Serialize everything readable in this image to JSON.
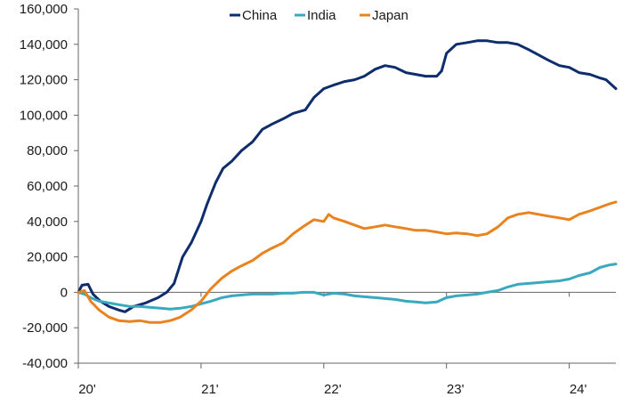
{
  "chart_data": {
    "type": "line",
    "title": "",
    "xlabel": "",
    "ylabel": "",
    "ylim": [
      -40000,
      160000
    ],
    "yticks": [
      -40000,
      -20000,
      0,
      20000,
      40000,
      60000,
      80000,
      100000,
      120000,
      140000,
      160000
    ],
    "ytick_labels": [
      "-40,000",
      "-20,000",
      "0",
      "20,000",
      "40,000",
      "60,000",
      "80,000",
      "100,000",
      "120,000",
      "140,000",
      "160,000"
    ],
    "xlim": [
      2020.0,
      2024.38
    ],
    "xticks": [
      2020,
      2021,
      2022,
      2023,
      2024
    ],
    "xtick_labels": [
      "20'",
      "21'",
      "22'",
      "23'",
      "24'"
    ],
    "grid": false,
    "legend_position": "top-center",
    "series": [
      {
        "name": "China",
        "color": "#0d2d6c",
        "points": [
          [
            2020.0,
            0
          ],
          [
            2020.03,
            4000
          ],
          [
            2020.08,
            4500
          ],
          [
            2020.12,
            -1000
          ],
          [
            2020.18,
            -5000
          ],
          [
            2020.25,
            -8000
          ],
          [
            2020.33,
            -10000
          ],
          [
            2020.38,
            -11000
          ],
          [
            2020.45,
            -8000
          ],
          [
            2020.55,
            -6000
          ],
          [
            2020.65,
            -3000
          ],
          [
            2020.72,
            0
          ],
          [
            2020.78,
            5000
          ],
          [
            2020.85,
            20000
          ],
          [
            2020.92,
            28000
          ],
          [
            2021.0,
            40000
          ],
          [
            2021.05,
            50000
          ],
          [
            2021.12,
            62000
          ],
          [
            2021.18,
            70000
          ],
          [
            2021.25,
            74000
          ],
          [
            2021.33,
            80000
          ],
          [
            2021.42,
            85000
          ],
          [
            2021.5,
            92000
          ],
          [
            2021.58,
            95000
          ],
          [
            2021.67,
            98000
          ],
          [
            2021.75,
            101000
          ],
          [
            2021.85,
            103000
          ],
          [
            2021.92,
            110000
          ],
          [
            2022.0,
            115000
          ],
          [
            2022.08,
            117000
          ],
          [
            2022.17,
            119000
          ],
          [
            2022.25,
            120000
          ],
          [
            2022.33,
            122000
          ],
          [
            2022.42,
            126000
          ],
          [
            2022.5,
            128000
          ],
          [
            2022.58,
            127000
          ],
          [
            2022.67,
            124000
          ],
          [
            2022.75,
            123000
          ],
          [
            2022.83,
            122000
          ],
          [
            2022.92,
            122000
          ],
          [
            2022.96,
            125000
          ],
          [
            2023.0,
            135000
          ],
          [
            2023.08,
            140000
          ],
          [
            2023.17,
            141000
          ],
          [
            2023.25,
            142000
          ],
          [
            2023.33,
            142000
          ],
          [
            2023.42,
            141000
          ],
          [
            2023.5,
            141000
          ],
          [
            2023.58,
            140000
          ],
          [
            2023.67,
            137000
          ],
          [
            2023.75,
            134000
          ],
          [
            2023.83,
            131000
          ],
          [
            2023.92,
            128000
          ],
          [
            2024.0,
            127000
          ],
          [
            2024.08,
            124000
          ],
          [
            2024.17,
            123000
          ],
          [
            2024.25,
            121000
          ],
          [
            2024.3,
            120000
          ],
          [
            2024.38,
            115000
          ]
        ]
      },
      {
        "name": "India",
        "color": "#3aa8bf",
        "points": [
          [
            2020.0,
            0
          ],
          [
            2020.05,
            -1000
          ],
          [
            2020.1,
            -3000
          ],
          [
            2020.17,
            -5000
          ],
          [
            2020.25,
            -6000
          ],
          [
            2020.33,
            -7000
          ],
          [
            2020.42,
            -8000
          ],
          [
            2020.5,
            -8000
          ],
          [
            2020.58,
            -8500
          ],
          [
            2020.67,
            -9000
          ],
          [
            2020.75,
            -9500
          ],
          [
            2020.83,
            -9000
          ],
          [
            2020.92,
            -8000
          ],
          [
            2021.0,
            -6500
          ],
          [
            2021.08,
            -5000
          ],
          [
            2021.17,
            -3000
          ],
          [
            2021.25,
            -2000
          ],
          [
            2021.33,
            -1500
          ],
          [
            2021.42,
            -1000
          ],
          [
            2021.5,
            -1000
          ],
          [
            2021.58,
            -1000
          ],
          [
            2021.67,
            -500
          ],
          [
            2021.75,
            -500
          ],
          [
            2021.83,
            0
          ],
          [
            2021.92,
            0
          ],
          [
            2022.0,
            -1500
          ],
          [
            2022.08,
            -500
          ],
          [
            2022.17,
            -1000
          ],
          [
            2022.25,
            -2000
          ],
          [
            2022.33,
            -2500
          ],
          [
            2022.42,
            -3000
          ],
          [
            2022.5,
            -3500
          ],
          [
            2022.58,
            -4000
          ],
          [
            2022.67,
            -5000
          ],
          [
            2022.75,
            -5500
          ],
          [
            2022.83,
            -6000
          ],
          [
            2022.92,
            -5500
          ],
          [
            2023.0,
            -3000
          ],
          [
            2023.08,
            -2000
          ],
          [
            2023.17,
            -1500
          ],
          [
            2023.25,
            -1000
          ],
          [
            2023.33,
            0
          ],
          [
            2023.42,
            1000
          ],
          [
            2023.5,
            3000
          ],
          [
            2023.58,
            4500
          ],
          [
            2023.67,
            5000
          ],
          [
            2023.75,
            5500
          ],
          [
            2023.83,
            6000
          ],
          [
            2023.92,
            6500
          ],
          [
            2024.0,
            7500
          ],
          [
            2024.08,
            9500
          ],
          [
            2024.17,
            11000
          ],
          [
            2024.25,
            14000
          ],
          [
            2024.33,
            15500
          ],
          [
            2024.38,
            16000
          ]
        ]
      },
      {
        "name": "Japan",
        "color": "#e8831f",
        "points": [
          [
            2020.0,
            0
          ],
          [
            2020.05,
            1000
          ],
          [
            2020.1,
            -5000
          ],
          [
            2020.17,
            -10000
          ],
          [
            2020.25,
            -14000
          ],
          [
            2020.33,
            -16000
          ],
          [
            2020.42,
            -16500
          ],
          [
            2020.5,
            -16000
          ],
          [
            2020.58,
            -17000
          ],
          [
            2020.67,
            -17000
          ],
          [
            2020.75,
            -16000
          ],
          [
            2020.83,
            -14000
          ],
          [
            2020.92,
            -10000
          ],
          [
            2021.0,
            -5000
          ],
          [
            2021.08,
            2000
          ],
          [
            2021.17,
            8000
          ],
          [
            2021.25,
            12000
          ],
          [
            2021.33,
            15000
          ],
          [
            2021.42,
            18000
          ],
          [
            2021.5,
            22000
          ],
          [
            2021.58,
            25000
          ],
          [
            2021.67,
            28000
          ],
          [
            2021.75,
            33000
          ],
          [
            2021.83,
            37000
          ],
          [
            2021.92,
            41000
          ],
          [
            2022.0,
            40000
          ],
          [
            2022.04,
            44000
          ],
          [
            2022.08,
            42000
          ],
          [
            2022.17,
            40000
          ],
          [
            2022.25,
            38000
          ],
          [
            2022.33,
            36000
          ],
          [
            2022.42,
            37000
          ],
          [
            2022.5,
            38000
          ],
          [
            2022.58,
            37000
          ],
          [
            2022.67,
            36000
          ],
          [
            2022.75,
            35000
          ],
          [
            2022.83,
            35000
          ],
          [
            2022.92,
            34000
          ],
          [
            2023.0,
            33000
          ],
          [
            2023.08,
            33500
          ],
          [
            2023.17,
            33000
          ],
          [
            2023.25,
            32000
          ],
          [
            2023.33,
            33000
          ],
          [
            2023.42,
            37000
          ],
          [
            2023.5,
            42000
          ],
          [
            2023.58,
            44000
          ],
          [
            2023.67,
            45000
          ],
          [
            2023.75,
            44000
          ],
          [
            2023.83,
            43000
          ],
          [
            2023.92,
            42000
          ],
          [
            2024.0,
            41000
          ],
          [
            2024.08,
            44000
          ],
          [
            2024.17,
            46000
          ],
          [
            2024.25,
            48000
          ],
          [
            2024.33,
            50000
          ],
          [
            2024.38,
            51000
          ]
        ]
      }
    ]
  }
}
